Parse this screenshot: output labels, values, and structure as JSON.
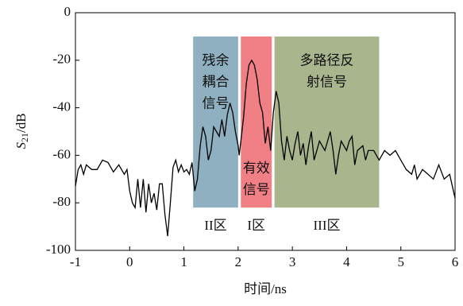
{
  "chart_data": {
    "type": "line",
    "x_label": "时间/ns",
    "y_label": {
      "symbol": "S",
      "subscript": "21",
      "unit": "/dB"
    },
    "xlim": [
      -1,
      6
    ],
    "xticks": [
      -1,
      0,
      1,
      2,
      3,
      4,
      5,
      6
    ],
    "ylim": [
      -100,
      0
    ],
    "yticks": [
      -100,
      -80,
      -60,
      -40,
      -20,
      0
    ],
    "regions": [
      {
        "x0": 1.17,
        "x1": 2.0,
        "y0": -82,
        "y1": -10,
        "color": "#8fb0c0",
        "lines": [
          "残余",
          "耦合",
          "信号"
        ],
        "label": "II区"
      },
      {
        "x0": 2.05,
        "x1": 2.62,
        "y0": -82,
        "y1": -10,
        "color": "#f07f86",
        "lines": [
          "有效",
          "信号"
        ],
        "label": "I区"
      },
      {
        "x0": 2.67,
        "x1": 4.6,
        "y0": -82,
        "y1": -10,
        "color": "#a9b58d",
        "lines": [
          "多路径反",
          "射信号"
        ],
        "label": "III区"
      }
    ],
    "series": [
      {
        "color": "#000000",
        "x": [
          -1,
          -0.95,
          -0.9,
          -0.85,
          -0.8,
          -0.7,
          -0.6,
          -0.5,
          -0.4,
          -0.3,
          -0.2,
          -0.1,
          -0.05,
          0,
          0.05,
          0.1,
          0.15,
          0.2,
          0.25,
          0.3,
          0.35,
          0.4,
          0.45,
          0.5,
          0.55,
          0.6,
          0.65,
          0.7,
          0.75,
          0.8,
          0.85,
          0.9,
          0.95,
          1.0,
          1.05,
          1.1,
          1.15,
          1.2,
          1.25,
          1.3,
          1.35,
          1.4,
          1.45,
          1.5,
          1.55,
          1.6,
          1.65,
          1.7,
          1.75,
          1.8,
          1.85,
          1.9,
          1.95,
          2.0,
          2.02,
          2.05,
          2.1,
          2.15,
          2.2,
          2.25,
          2.3,
          2.35,
          2.4,
          2.45,
          2.5,
          2.55,
          2.6,
          2.65,
          2.7,
          2.75,
          2.8,
          2.85,
          2.9,
          2.95,
          3.0,
          3.05,
          3.1,
          3.15,
          3.2,
          3.25,
          3.3,
          3.35,
          3.4,
          3.5,
          3.6,
          3.65,
          3.7,
          3.75,
          3.8,
          3.85,
          3.9,
          3.95,
          4.0,
          4.05,
          4.1,
          4.15,
          4.2,
          4.3,
          4.35,
          4.4,
          4.5,
          4.55,
          4.6,
          4.7,
          4.8,
          4.9,
          5.0,
          5.1,
          5.2,
          5.25,
          5.3,
          5.4,
          5.5,
          5.6,
          5.7,
          5.8,
          5.9,
          6.0
        ],
        "values": [
          -73,
          -66,
          -64,
          -68,
          -64,
          -66,
          -66,
          -62,
          -63,
          -67,
          -64,
          -68,
          -66,
          -75,
          -80,
          -82,
          -70,
          -82,
          -70,
          -84,
          -72,
          -80,
          -76,
          -83,
          -72,
          -72,
          -85,
          -94,
          -80,
          -65,
          -62,
          -67,
          -64,
          -67,
          -66,
          -68,
          -63,
          -75,
          -70,
          -56,
          -48,
          -52,
          -62,
          -58,
          -48,
          -50,
          -52,
          -45,
          -52,
          -43,
          -38,
          -42,
          -50,
          -56,
          -60,
          -54,
          -44,
          -30,
          -22,
          -20,
          -22,
          -28,
          -38,
          -42,
          -55,
          -48,
          -58,
          -42,
          -33,
          -38,
          -54,
          -62,
          -52,
          -58,
          -62,
          -55,
          -50,
          -60,
          -55,
          -64,
          -56,
          -50,
          -62,
          -54,
          -58,
          -54,
          -50,
          -58,
          -68,
          -60,
          -54,
          -56,
          -58,
          -54,
          -52,
          -64,
          -58,
          -56,
          -62,
          -58,
          -58,
          -60,
          -62,
          -58,
          -60,
          -58,
          -62,
          -66,
          -68,
          -64,
          -70,
          -66,
          -68,
          -70,
          -64,
          -70,
          -68,
          -78
        ]
      }
    ]
  }
}
